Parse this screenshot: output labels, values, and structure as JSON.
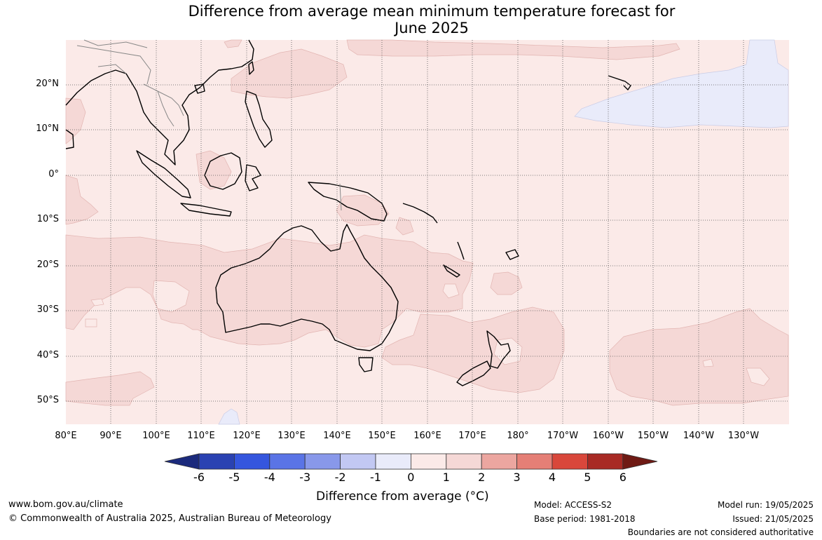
{
  "title": {
    "line1": "Difference from average mean minimum temperature forecast for",
    "line2": "June 2025"
  },
  "map": {
    "latitude_labels": [
      "20°N",
      "10°N",
      "0°",
      "10°S",
      "20°S",
      "30°S",
      "40°S",
      "50°S"
    ],
    "longitude_labels": [
      "80°E",
      "90°E",
      "100°E",
      "110°E",
      "120°E",
      "130°E",
      "140°E",
      "150°E",
      "160°E",
      "170°E",
      "180°",
      "170°W",
      "160°W",
      "150°W",
      "140°W",
      "130°W"
    ],
    "colors": {
      "zero_to_one": "#fbeae8",
      "one_to_two": "#f5d8d6",
      "minus_one_to_zero": "#e9ebfa",
      "coast": "#000000",
      "border": "#888888",
      "grid": "#555555"
    }
  },
  "colorbar": {
    "tick_labels": [
      "-6",
      "-5",
      "-4",
      "-3",
      "-2",
      "-1",
      "0",
      "1",
      "2",
      "3",
      "4",
      "5",
      "6"
    ],
    "colors": [
      "#1b2a7c",
      "#2a42b2",
      "#3556de",
      "#5a74e6",
      "#8898ea",
      "#c2c8f3",
      "#e9ebfa",
      "#fbeae8",
      "#f5d8d6",
      "#eca6a0",
      "#e57f76",
      "#d9473b",
      "#a82a24",
      "#6f1a14"
    ],
    "title": "Difference from average (°C)"
  },
  "footer": {
    "website": "www.bom.gov.au/climate",
    "copyright": "© Commonwealth of Australia 2025, Australian Bureau of Meteorology",
    "model": "Model: ACCESS-S2",
    "base_period": "Base period: 1981-2018",
    "model_run": "Model run: 19/05/2025",
    "issued": "Issued: 21/05/2025",
    "boundaries_note": "Boundaries are not considered authoritative"
  }
}
